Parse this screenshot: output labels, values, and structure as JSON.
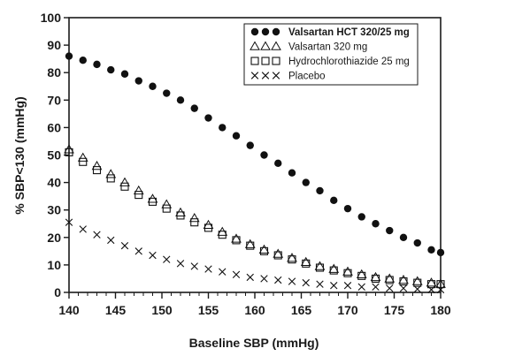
{
  "chart_data": {
    "type": "scatter",
    "title": "",
    "xlabel": "Baseline SBP (mmHg)",
    "ylabel": "% SBP<130 (mmHg)",
    "xlim": [
      140,
      180
    ],
    "ylim": [
      0,
      100
    ],
    "x_ticks": [
      140,
      145,
      150,
      155,
      160,
      165,
      170,
      175,
      180
    ],
    "y_ticks": [
      0,
      10,
      20,
      30,
      40,
      50,
      60,
      70,
      80,
      90,
      100
    ],
    "grid": false,
    "legend_position": "top-right",
    "series": [
      {
        "name": "Valsartan HCT 320/25 mg",
        "marker": "filled-circle",
        "x": [
          140,
          141.5,
          143,
          144.5,
          146,
          147.5,
          149,
          150.5,
          152,
          153.5,
          155,
          156.5,
          158,
          159.5,
          161,
          162.5,
          164,
          165.5,
          167,
          168.5,
          170,
          171.5,
          173,
          174.5,
          176,
          177.5,
          179,
          180
        ],
        "y": [
          86,
          84.5,
          83,
          81,
          79.5,
          77,
          75,
          72.5,
          70,
          67,
          63.5,
          60,
          57,
          53.5,
          50,
          47,
          43.5,
          40,
          37,
          33.5,
          30.5,
          27.5,
          25,
          22.5,
          20,
          18,
          15.5,
          14.5
        ]
      },
      {
        "name": "Valsartan 320 mg",
        "marker": "open-triangle",
        "x": [
          140,
          141.5,
          143,
          144.5,
          146,
          147.5,
          149,
          150.5,
          152,
          153.5,
          155,
          156.5,
          158,
          159.5,
          161,
          162.5,
          164,
          165.5,
          167,
          168.5,
          170,
          171.5,
          173,
          174.5,
          176,
          177.5,
          179,
          180
        ],
        "y": [
          52,
          49,
          46,
          43,
          40,
          37,
          34,
          32,
          29,
          27,
          24.5,
          22,
          19.5,
          17.5,
          15.5,
          14,
          12.5,
          11,
          9.5,
          8.5,
          7.5,
          6.5,
          5.5,
          5,
          4.5,
          4,
          3.5,
          3
        ]
      },
      {
        "name": "Hydrochlorothiazide 25 mg",
        "marker": "open-square",
        "x": [
          140,
          141.5,
          143,
          144.5,
          146,
          147.5,
          149,
          150.5,
          152,
          153.5,
          155,
          156.5,
          158,
          159.5,
          161,
          162.5,
          164,
          165.5,
          167,
          168.5,
          170,
          171.5,
          173,
          174.5,
          176,
          177.5,
          179,
          180
        ],
        "y": [
          51,
          47.5,
          44.5,
          41.5,
          38.5,
          35.5,
          33,
          30.5,
          28,
          25.5,
          23.5,
          21,
          19,
          17,
          15,
          13.5,
          12,
          10.5,
          9,
          8,
          7,
          6,
          5,
          4.5,
          4,
          3.5,
          3,
          3
        ]
      },
      {
        "name": "Placebo",
        "marker": "x",
        "x": [
          140,
          141.5,
          143,
          144.5,
          146,
          147.5,
          149,
          150.5,
          152,
          153.5,
          155,
          156.5,
          158,
          159.5,
          161,
          162.5,
          164,
          165.5,
          167,
          168.5,
          170,
          171.5,
          173,
          174.5,
          176,
          177.5,
          179,
          180
        ],
        "y": [
          25.5,
          23,
          21,
          19,
          17,
          15,
          13.5,
          12,
          10.5,
          9.5,
          8.5,
          7.5,
          6.5,
          5.5,
          5,
          4.5,
          4,
          3.5,
          3,
          2.5,
          2.5,
          2,
          2,
          1.5,
          1.5,
          1.2,
          1,
          1
        ]
      }
    ]
  }
}
